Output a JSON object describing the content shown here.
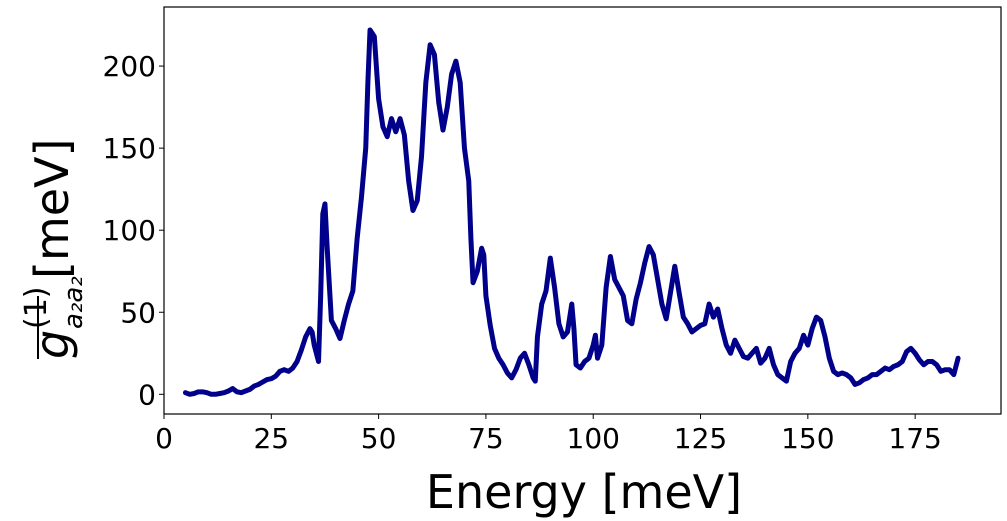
{
  "chart_data": {
    "type": "line",
    "xlabel": "Energy [meV]",
    "ylabel_math": {
      "symbol": "g",
      "superscript": "(1)",
      "subscript": "a₂a₂",
      "unit": "[meV]"
    },
    "xlim": [
      0,
      195
    ],
    "ylim": [
      -12,
      236
    ],
    "x_ticks": [
      0,
      25,
      50,
      75,
      100,
      125,
      150,
      175
    ],
    "y_ticks": [
      0,
      50,
      100,
      150,
      200
    ],
    "grid": false,
    "legend": "none",
    "series": [
      {
        "color": "#00008b",
        "points": [
          [
            5,
            1
          ],
          [
            6,
            0
          ],
          [
            7,
            0.5
          ],
          [
            8,
            1.5
          ],
          [
            9,
            1.5
          ],
          [
            10,
            1
          ],
          [
            11,
            0
          ],
          [
            12,
            0
          ],
          [
            13,
            0.5
          ],
          [
            14,
            1
          ],
          [
            15,
            2
          ],
          [
            16,
            3.5
          ],
          [
            17,
            1.5
          ],
          [
            18,
            1
          ],
          [
            19,
            2
          ],
          [
            20,
            3
          ],
          [
            21,
            5
          ],
          [
            22,
            6
          ],
          [
            23,
            7.5
          ],
          [
            24,
            9
          ],
          [
            25,
            9.5
          ],
          [
            26,
            11
          ],
          [
            27,
            14
          ],
          [
            28,
            15
          ],
          [
            29,
            14
          ],
          [
            30,
            16
          ],
          [
            31,
            20
          ],
          [
            32,
            27
          ],
          [
            33,
            35
          ],
          [
            34,
            40
          ],
          [
            34.5,
            38
          ],
          [
            35,
            30
          ],
          [
            36,
            20
          ],
          [
            36.5,
            60
          ],
          [
            37,
            110
          ],
          [
            37.5,
            116
          ],
          [
            38,
            90
          ],
          [
            39,
            45
          ],
          [
            40,
            40
          ],
          [
            41,
            34
          ],
          [
            42,
            45
          ],
          [
            43,
            55
          ],
          [
            44,
            63
          ],
          [
            45,
            95
          ],
          [
            46,
            120
          ],
          [
            47,
            150
          ],
          [
            47.5,
            190
          ],
          [
            48,
            222
          ],
          [
            49,
            218
          ],
          [
            50,
            180
          ],
          [
            51,
            163
          ],
          [
            52,
            157
          ],
          [
            53,
            168
          ],
          [
            54,
            160
          ],
          [
            55,
            168
          ],
          [
            56,
            158
          ],
          [
            57,
            130
          ],
          [
            58,
            112
          ],
          [
            59,
            118
          ],
          [
            60,
            145
          ],
          [
            61,
            190
          ],
          [
            62,
            213
          ],
          [
            63,
            207
          ],
          [
            64,
            178
          ],
          [
            65,
            161
          ],
          [
            66,
            175
          ],
          [
            67,
            195
          ],
          [
            68,
            203
          ],
          [
            69,
            190
          ],
          [
            70,
            150
          ],
          [
            71,
            130
          ],
          [
            71.5,
            95
          ],
          [
            72,
            68
          ],
          [
            73,
            75
          ],
          [
            74,
            89
          ],
          [
            74.5,
            85
          ],
          [
            75,
            60
          ],
          [
            76,
            42
          ],
          [
            77,
            28
          ],
          [
            78,
            22
          ],
          [
            79,
            18
          ],
          [
            80,
            13
          ],
          [
            81,
            10
          ],
          [
            82,
            15
          ],
          [
            83,
            22
          ],
          [
            84,
            25
          ],
          [
            85,
            18
          ],
          [
            86,
            10
          ],
          [
            86.5,
            8
          ],
          [
            87,
            35
          ],
          [
            88,
            55
          ],
          [
            89,
            63
          ],
          [
            90,
            83
          ],
          [
            91,
            65
          ],
          [
            92,
            43
          ],
          [
            93,
            35
          ],
          [
            94,
            38
          ],
          [
            95,
            55
          ],
          [
            95.5,
            40
          ],
          [
            96,
            18
          ],
          [
            97,
            16
          ],
          [
            98,
            20
          ],
          [
            99,
            22
          ],
          [
            100,
            30
          ],
          [
            100.5,
            36
          ],
          [
            101,
            22
          ],
          [
            102,
            30
          ],
          [
            103,
            65
          ],
          [
            104,
            84
          ],
          [
            105,
            70
          ],
          [
            106,
            65
          ],
          [
            107,
            60
          ],
          [
            108,
            45
          ],
          [
            109,
            43
          ],
          [
            110,
            58
          ],
          [
            111,
            68
          ],
          [
            112,
            80
          ],
          [
            113,
            90
          ],
          [
            114,
            85
          ],
          [
            115,
            70
          ],
          [
            116,
            55
          ],
          [
            117,
            46
          ],
          [
            118,
            62
          ],
          [
            119,
            78
          ],
          [
            120,
            62
          ],
          [
            121,
            47
          ],
          [
            122,
            43
          ],
          [
            123,
            38
          ],
          [
            124,
            40
          ],
          [
            125,
            42
          ],
          [
            126,
            43
          ],
          [
            127,
            55
          ],
          [
            128,
            47
          ],
          [
            129,
            52
          ],
          [
            130,
            40
          ],
          [
            131,
            30
          ],
          [
            132,
            25
          ],
          [
            133,
            33
          ],
          [
            134,
            28
          ],
          [
            135,
            23
          ],
          [
            136,
            22
          ],
          [
            137,
            25
          ],
          [
            138,
            28
          ],
          [
            139,
            19
          ],
          [
            140,
            22
          ],
          [
            141,
            28
          ],
          [
            142,
            18
          ],
          [
            143,
            12
          ],
          [
            144,
            10
          ],
          [
            145,
            8
          ],
          [
            146,
            20
          ],
          [
            147,
            25
          ],
          [
            148,
            28
          ],
          [
            149,
            36
          ],
          [
            150,
            30
          ],
          [
            151,
            40
          ],
          [
            152,
            47
          ],
          [
            153,
            45
          ],
          [
            154,
            35
          ],
          [
            155,
            22
          ],
          [
            156,
            14
          ],
          [
            157,
            12
          ],
          [
            158,
            13
          ],
          [
            159,
            12
          ],
          [
            160,
            10
          ],
          [
            161,
            6
          ],
          [
            162,
            7
          ],
          [
            163,
            9
          ],
          [
            164,
            10
          ],
          [
            165,
            12
          ],
          [
            166,
            12
          ],
          [
            167,
            14
          ],
          [
            168,
            16
          ],
          [
            169,
            15
          ],
          [
            170,
            17
          ],
          [
            171,
            18
          ],
          [
            172,
            20
          ],
          [
            173,
            26
          ],
          [
            174,
            28
          ],
          [
            175,
            25
          ],
          [
            176,
            21
          ],
          [
            177,
            18
          ],
          [
            178,
            20
          ],
          [
            179,
            20
          ],
          [
            180,
            18
          ],
          [
            181,
            14
          ],
          [
            182,
            15
          ],
          [
            183,
            15
          ],
          [
            184,
            12
          ],
          [
            185,
            22
          ]
        ]
      }
    ]
  }
}
